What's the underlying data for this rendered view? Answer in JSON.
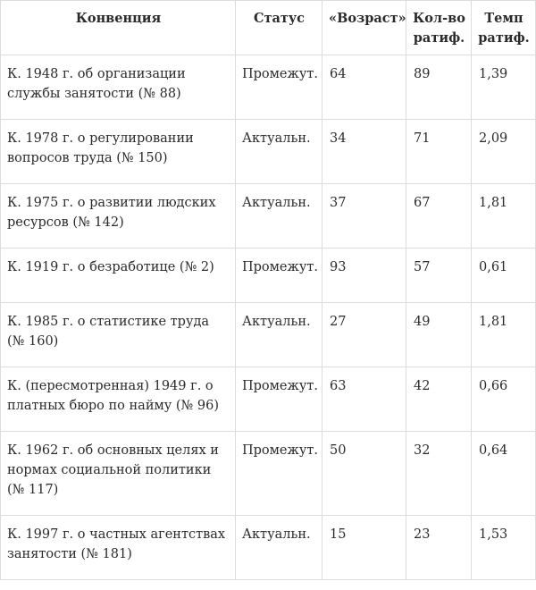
{
  "headers": {
    "convention": "Конвенция",
    "status": "Статус",
    "age": "«Возраст»",
    "ratifications": "Кол-во ратиф.",
    "rate": "Темп ратиф."
  },
  "rows": [
    {
      "convention": "К. 1948 г. об организации службы занятости (№ 88)",
      "status": "Промежут.",
      "age": "64",
      "ratifications": "89",
      "rate": "1,39"
    },
    {
      "convention": "К. 1978 г. о регулировании вопросов труда (№ 150)",
      "status": "Актуальн.",
      "age": "34",
      "ratifications": "71",
      "rate": "2,09"
    },
    {
      "convention": "К. 1975 г. о развитии людских ресурсов (№ 142)",
      "status": "Актуальн.",
      "age": "37",
      "ratifications": "67",
      "rate": "1,81"
    },
    {
      "convention": "К. 1919 г. о безработице (№ 2)",
      "status": "Промежут.",
      "age": "93",
      "ratifications": "57",
      "rate": "0,61"
    },
    {
      "convention": "К. 1985 г. о статистике труда (№ 160)",
      "status": "Актуальн.",
      "age": "27",
      "ratifications": "49",
      "rate": "1,81"
    },
    {
      "convention": "К. (пересмотренная) 1949 г. о платных бюро по найму (№ 96)",
      "status": "Промежут.",
      "age": "63",
      "ratifications": "42",
      "rate": "0,66"
    },
    {
      "convention": "К. 1962 г. об основных целях и нормах социальной политики (№ 117)",
      "status": "Промежут.",
      "age": "50",
      "ratifications": "32",
      "rate": "0,64"
    },
    {
      "convention": "К. 1997 г. о частных агентствах занятости (№ 181)",
      "status": "Актуальн.",
      "age": "15",
      "ratifications": "23",
      "rate": "1,53"
    }
  ]
}
